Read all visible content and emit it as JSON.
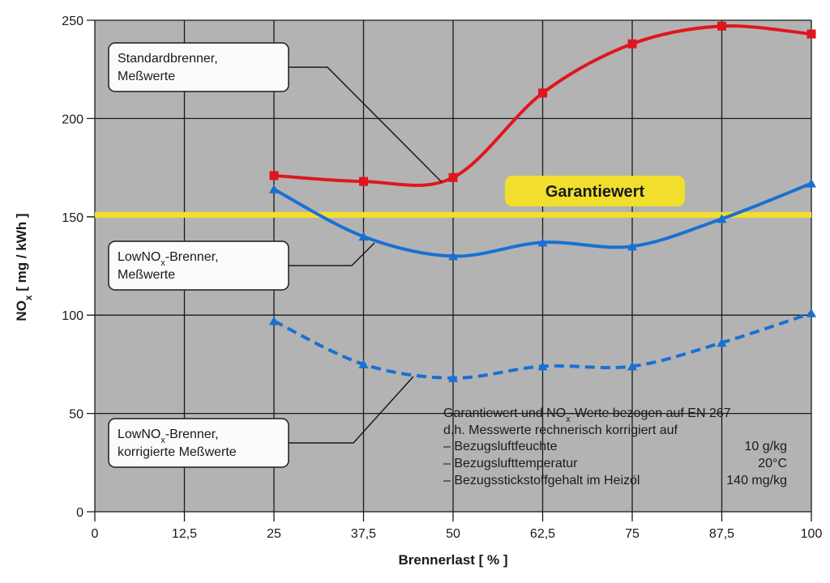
{
  "chart_data": {
    "type": "line",
    "xlabel": "Brennerlast [ % ]",
    "ylabel": "NO",
    "ylabel_sub": "x",
    "ylabel_rest": " [ mg / kWh ]",
    "xlim": [
      0,
      100
    ],
    "ylim": [
      0,
      250
    ],
    "x_ticks": [
      0,
      12.5,
      25,
      37.5,
      50,
      62.5,
      75,
      87.5,
      100
    ],
    "x_tick_labels": [
      "0",
      "12,5",
      "25",
      "37,5",
      "50",
      "62,5",
      "75",
      "87,5",
      "100"
    ],
    "y_ticks": [
      0,
      50,
      100,
      150,
      200,
      250
    ],
    "y_tick_labels": [
      "0",
      "50",
      "100",
      "150",
      "200",
      "250"
    ],
    "grid": true,
    "x": [
      25,
      37.5,
      50,
      62.5,
      75,
      87.5,
      100
    ],
    "series": [
      {
        "values": [
          171,
          168,
          170,
          213,
          238,
          247,
          243
        ],
        "color": "#e0161e",
        "marker": "square",
        "dash": "solid",
        "label_lines": [
          "Standardbrenner,",
          "Meßwerte"
        ]
      },
      {
        "values": [
          164,
          140,
          130,
          137,
          135,
          149,
          167
        ],
        "color": "#1a70d2",
        "marker": "triangle",
        "dash": "solid",
        "label_lines": [
          "LowNOx-Brenner,",
          "Meßwerte"
        ]
      },
      {
        "values": [
          97,
          75,
          68,
          74,
          74,
          86,
          101
        ],
        "color": "#1a70d2",
        "marker": "triangle",
        "dash": "dashed",
        "label_lines": [
          "LowNOx-Brenner,",
          "korrigierte Meßwerte"
        ]
      }
    ],
    "reference_line": {
      "value": 151,
      "label": "Garantiewert",
      "color": "#f2de2c"
    },
    "annotation": {
      "line1": "Garantiewert und NOx-Werte bezogen auf EN 267",
      "line2": "d.h. Messwerte rechnerisch korrigiert auf",
      "rows": [
        {
          "label": "– Bezugsluftfeuchte",
          "value": "10 g/kg"
        },
        {
          "label": "– Bezugslufttemperatur",
          "value": "20°C"
        },
        {
          "label": "– Bezugsstickstoffgehalt im Heizöl",
          "value": "140 mg/kg"
        }
      ]
    },
    "colors": {
      "plot_bg": "#b3b3b3",
      "grid": "#1a1a1a",
      "box_bg": "#fbfbfb"
    }
  }
}
